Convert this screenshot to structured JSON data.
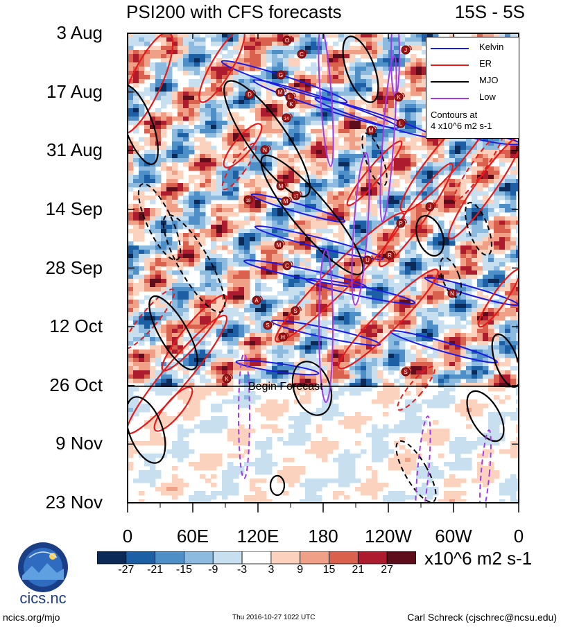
{
  "header": {
    "title": "PSI200 with CFS forecasts",
    "region": "15S - 5S"
  },
  "chart_data": {
    "type": "heatmap",
    "title": "PSI200 with CFS forecasts",
    "subtitle": "15S - 5S",
    "y_ticks": [
      "3 Aug",
      "17 Aug",
      "31 Aug",
      "14 Sep",
      "28 Sep",
      "12 Oct",
      "26 Oct",
      "9 Nov",
      "23 Nov"
    ],
    "x_ticks": [
      "0",
      "60E",
      "120E",
      "180",
      "120W",
      "60W",
      "0"
    ],
    "x_range_deg": [
      0,
      360
    ],
    "forecast_line_label": "Begin Forecast",
    "forecast_start": "26 Oct",
    "legend": [
      {
        "name": "Kelvin",
        "color": "#1a1ae6"
      },
      {
        "name": "ER",
        "color": "#e61a1a"
      },
      {
        "name": "MJO",
        "color": "#000000"
      },
      {
        "name": "Low",
        "color": "#a03ae6"
      }
    ],
    "contour_note_line1": "Contours at",
    "contour_note_line2": "4 x10^6 m2 s-1",
    "colorbar": {
      "levels": [
        "-27",
        "-21",
        "-15",
        "-9",
        "-3",
        "3",
        "9",
        "15",
        "21",
        "27"
      ],
      "colors": [
        "#0b2a57",
        "#1d5fa5",
        "#4f8fc8",
        "#8dbbe0",
        "#c8dff0",
        "#ffffff",
        "#fbd2bd",
        "#f0a086",
        "#d9614e",
        "#ad1c2e",
        "#5e0d1a"
      ],
      "units": "x10^6 m2 s-1"
    },
    "storm_markers": [
      "O",
      "C",
      "J",
      "G",
      "D",
      "M",
      "L",
      "K",
      "14",
      "L",
      "M",
      "N",
      "M",
      "18",
      "17",
      "M",
      "P",
      "U",
      "R",
      "M",
      "C",
      "A",
      "S",
      "S",
      "H",
      "K",
      "N",
      "S",
      "J",
      "K"
    ]
  },
  "footer": {
    "left": "ncics.org/mjo",
    "center": "Thu 2016-10-27 1022 UTC",
    "right": "Carl Schreck (cjschrec@ncsu.edu)"
  },
  "logo": {
    "text": "cics.nc",
    "ring": "Cooperative Institute for Climate and Satellites"
  }
}
